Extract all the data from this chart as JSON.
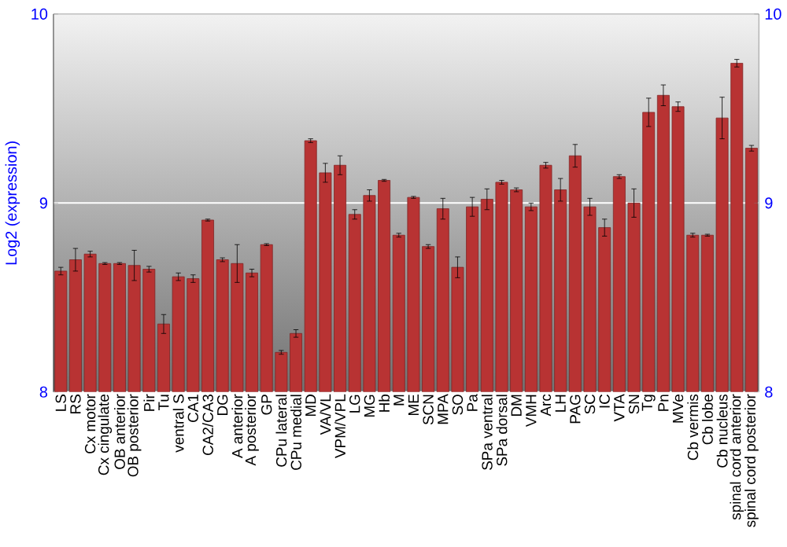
{
  "chart_data": {
    "type": "bar",
    "ylabel": "Log2 (expression)",
    "categories": [
      "LS",
      "RS",
      "Cx motor",
      "Cx cingulate",
      "OB anterior",
      "OB posterior",
      "Pir",
      "Tu",
      "ventral S",
      "CA1",
      "CA2/CA3",
      "DG",
      "A anterior",
      "A posterior",
      "GP",
      "CPu lateral",
      "CPu medial",
      "MD",
      "VA/VL",
      "VPM/VPL",
      "LG",
      "MG",
      "Hb",
      "M",
      "ME",
      "SCN",
      "MPA",
      "SO",
      "Pa",
      "SPa ventral",
      "SPa dorsal",
      "DM",
      "VMH",
      "Arc",
      "LH",
      "PAG",
      "SC",
      "IC",
      "VTA",
      "SN",
      "Tg",
      "Pn",
      "MVe",
      "Cb vermis",
      "Cb lobe",
      "Cb nucleus",
      "spinal cord anterior",
      "spinal cord posterior"
    ],
    "values": [
      8.64,
      8.7,
      8.73,
      8.68,
      8.68,
      8.67,
      8.65,
      8.36,
      8.61,
      8.6,
      8.91,
      8.7,
      8.68,
      8.63,
      8.78,
      8.21,
      8.31,
      9.33,
      9.16,
      9.2,
      8.94,
      9.04,
      9.12,
      8.83,
      9.03,
      8.77,
      8.97,
      8.66,
      8.98,
      9.02,
      9.11,
      9.07,
      8.98,
      9.2,
      9.07,
      9.25,
      8.98,
      8.87,
      9.14,
      9.0,
      9.48,
      9.57,
      9.51,
      8.83,
      8.83,
      9.45,
      9.74,
      9.29
    ],
    "errors": [
      0.02,
      0.06,
      0.015,
      0.005,
      0.005,
      0.08,
      0.015,
      0.05,
      0.02,
      0.02,
      0.005,
      0.01,
      0.1,
      0.02,
      0.005,
      0.01,
      0.02,
      0.01,
      0.05,
      0.05,
      0.025,
      0.03,
      0.005,
      0.01,
      0.005,
      0.01,
      0.055,
      0.055,
      0.05,
      0.055,
      0.01,
      0.01,
      0.02,
      0.015,
      0.06,
      0.06,
      0.045,
      0.045,
      0.01,
      0.075,
      0.075,
      0.055,
      0.025,
      0.01,
      0.005,
      0.11,
      0.02,
      0.015
    ],
    "color": "#b83333",
    "ylim": [
      8,
      10
    ],
    "yticks": [
      8,
      9,
      10
    ],
    "y2lim": [
      8,
      10
    ],
    "y2ticks": [
      8,
      9,
      10
    ],
    "grid": "y"
  }
}
